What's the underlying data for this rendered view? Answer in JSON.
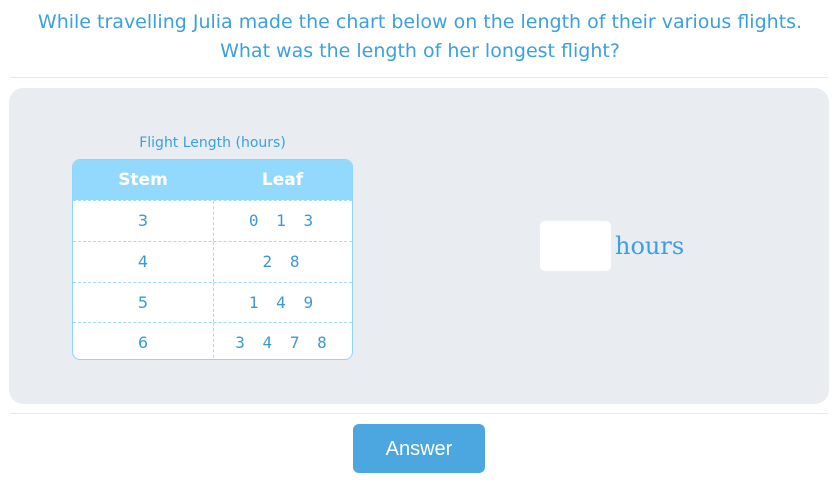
{
  "question": {
    "line1": "While travelling Julia made the chart below on the length of their various flights.",
    "line2": "What was the length of her longest flight?"
  },
  "table": {
    "caption": "Flight Length (hours)",
    "headers": {
      "stem": "Stem",
      "leaf": "Leaf"
    },
    "rows": [
      {
        "stem": "3",
        "leaf": "0 1 3"
      },
      {
        "stem": "4",
        "leaf": "2 8"
      },
      {
        "stem": "5",
        "leaf": "1 4 9"
      },
      {
        "stem": "6",
        "leaf": "3 4 7 8"
      }
    ]
  },
  "answer": {
    "value": "",
    "unit": "hours"
  },
  "button": {
    "label": "Answer"
  },
  "colors": {
    "accent": "#3aa0e0",
    "header": "#93d8fd",
    "panel": "#e9edf1",
    "button": "#4ca6df"
  }
}
